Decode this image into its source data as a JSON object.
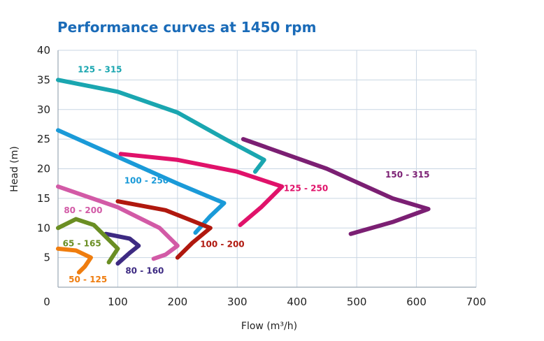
{
  "chart_data": {
    "type": "line",
    "title": "Performance curves at 1450 rpm",
    "xlabel": "Flow (m³/h)",
    "ylabel": "Head (m)",
    "xlim": [
      0,
      700
    ],
    "ylim": [
      0,
      40
    ],
    "xticks": [
      0,
      100,
      200,
      300,
      400,
      500,
      600,
      700
    ],
    "yticks": [
      5,
      10,
      15,
      20,
      25,
      30,
      35,
      40
    ],
    "grid": true,
    "series": [
      {
        "name": "125 - 315",
        "color": "#1aa6b0",
        "points": [
          [
            0,
            35
          ],
          [
            100,
            33
          ],
          [
            200,
            29.5
          ],
          [
            280,
            25
          ],
          [
            345,
            21.5
          ],
          [
            330,
            19.5
          ]
        ]
      },
      {
        "name": "150 - 315",
        "color": "#7b1f73",
        "points": [
          [
            310,
            25
          ],
          [
            450,
            20
          ],
          [
            560,
            15
          ],
          [
            620,
            13.2
          ],
          [
            560,
            11
          ],
          [
            490,
            9
          ]
        ]
      },
      {
        "name": "100 - 250",
        "color": "#1a9ad8",
        "points": [
          [
            0,
            26.5
          ],
          [
            100,
            22
          ],
          [
            200,
            17.5
          ],
          [
            278,
            14.2
          ],
          [
            255,
            12
          ],
          [
            230,
            9.2
          ]
        ]
      },
      {
        "name": "125 - 250",
        "color": "#e0126a",
        "points": [
          [
            105,
            22.5
          ],
          [
            200,
            21.5
          ],
          [
            300,
            19.5
          ],
          [
            375,
            17
          ],
          [
            340,
            13.5
          ],
          [
            305,
            10.5
          ]
        ]
      },
      {
        "name": "80 - 200",
        "color": "#d25aa6",
        "points": [
          [
            0,
            17
          ],
          [
            100,
            13.5
          ],
          [
            170,
            10
          ],
          [
            200,
            7
          ],
          [
            180,
            5.5
          ],
          [
            160,
            4.8
          ]
        ]
      },
      {
        "name": "100 - 200",
        "color": "#b0180e",
        "points": [
          [
            100,
            14.5
          ],
          [
            180,
            13
          ],
          [
            255,
            10
          ],
          [
            225,
            7.5
          ],
          [
            200,
            5
          ]
        ]
      },
      {
        "name": "80 - 160",
        "color": "#3d2a82",
        "points": [
          [
            80,
            9
          ],
          [
            120,
            8.2
          ],
          [
            135,
            7
          ],
          [
            120,
            5.8
          ],
          [
            100,
            4
          ]
        ]
      },
      {
        "name": "65 - 165",
        "color": "#6a8e23",
        "points": [
          [
            0,
            10
          ],
          [
            30,
            11.5
          ],
          [
            60,
            10.5
          ],
          [
            100,
            6.5
          ],
          [
            85,
            4.2
          ]
        ]
      },
      {
        "name": "50 - 125",
        "color": "#ef7d0f",
        "points": [
          [
            0,
            6.5
          ],
          [
            30,
            6.2
          ],
          [
            55,
            5
          ],
          [
            45,
            3.5
          ],
          [
            35,
            2.5
          ]
        ]
      }
    ],
    "labels": [
      {
        "text": "125 - 315",
        "x": 70,
        "y": 36.3
      },
      {
        "text": "150 - 315",
        "x": 585,
        "y": 18.5
      },
      {
        "text": "100 - 250",
        "x": 148,
        "y": 17.5
      },
      {
        "text": "125 - 250",
        "x": 415,
        "y": 16.2
      },
      {
        "text": "80 - 200",
        "x": 42,
        "y": 12.5
      },
      {
        "text": "100 - 200",
        "x": 275,
        "y": 6.8
      },
      {
        "text": "80 - 160",
        "x": 145,
        "y": 2.3
      },
      {
        "text": "65 - 165",
        "x": 40,
        "y": 6.9
      },
      {
        "text": "50 - 125",
        "x": 50,
        "y": 0.8
      }
    ]
  }
}
